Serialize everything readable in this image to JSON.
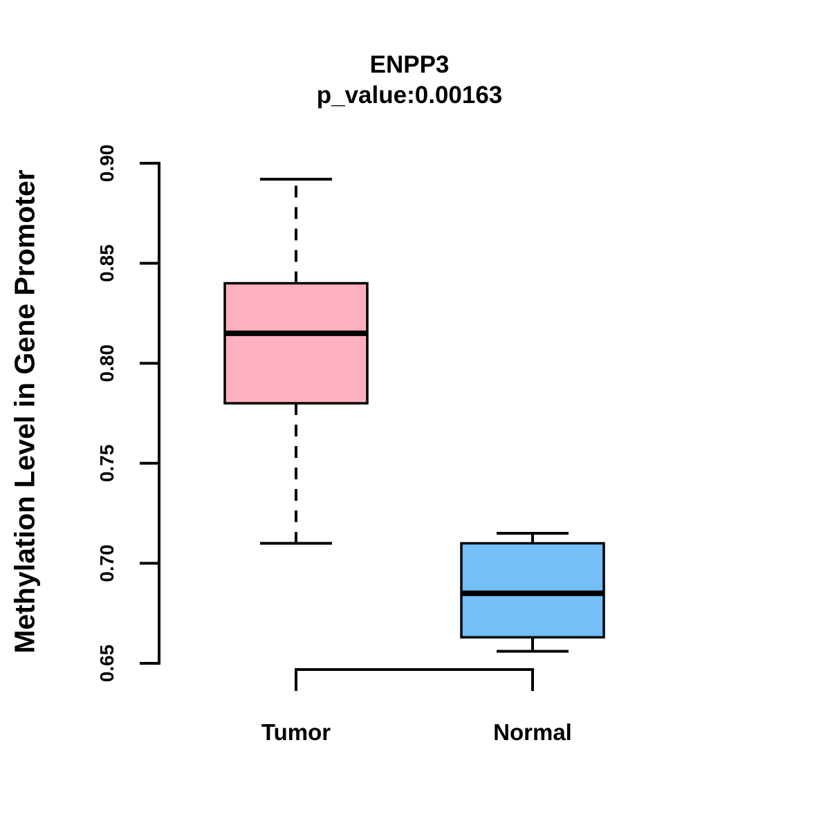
{
  "chart_data": {
    "type": "boxplot",
    "title": "ENPP3",
    "subtitle": "p_value:0.00163",
    "p_value": 0.00163,
    "ylabel": "Methylation Level in Gene Promoter",
    "xlabel": "",
    "ylim": [
      0.65,
      0.9
    ],
    "y_ticks": [
      0.65,
      0.7,
      0.75,
      0.8,
      0.85,
      0.9
    ],
    "y_tick_labels": [
      "0.65",
      "0.70",
      "0.75",
      "0.80",
      "0.85",
      "0.90"
    ],
    "grid": "off",
    "legend": "none",
    "line_color": "#000000",
    "background_color": "#ffffff",
    "groups": [
      {
        "label": "Tumor",
        "fill_color": "#FFB0C0",
        "whisker_low": 0.71,
        "q1": 0.78,
        "median": 0.815,
        "q3": 0.84,
        "whisker_high": 0.892,
        "whisker_style": "dashed"
      },
      {
        "label": "Normal",
        "fill_color": "#74BFF8",
        "whisker_low": 0.656,
        "q1": 0.663,
        "median": 0.685,
        "q3": 0.71,
        "whisker_high": 0.715,
        "whisker_style": "dashed"
      }
    ],
    "comparison_bracket": {
      "from": "Tumor",
      "to": "Normal"
    }
  }
}
